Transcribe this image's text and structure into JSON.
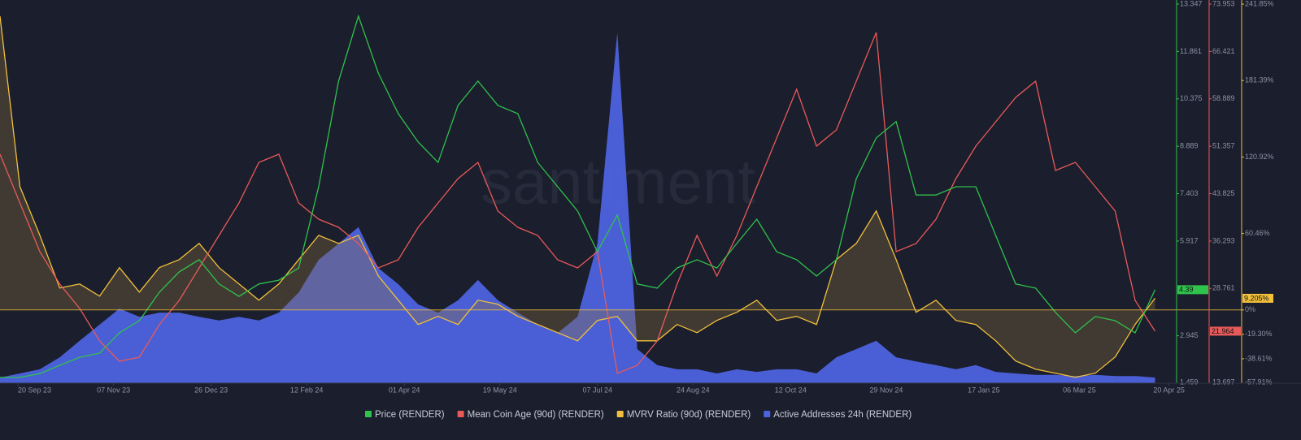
{
  "chart_data": {
    "type": "line",
    "watermark": "santiment",
    "x": [
      "2023-09-11",
      "2023-09-21",
      "2023-10-01",
      "2023-10-11",
      "2023-10-21",
      "2023-10-31",
      "2023-11-10",
      "2023-11-20",
      "2023-11-30",
      "2023-12-10",
      "2023-12-20",
      "2023-12-30",
      "2024-01-09",
      "2024-01-19",
      "2024-01-29",
      "2024-02-08",
      "2024-02-18",
      "2024-02-28",
      "2024-03-09",
      "2024-03-19",
      "2024-03-29",
      "2024-04-08",
      "2024-04-18",
      "2024-04-28",
      "2024-05-08",
      "2024-05-18",
      "2024-05-28",
      "2024-06-07",
      "2024-06-17",
      "2024-06-27",
      "2024-07-07",
      "2024-07-17",
      "2024-07-27",
      "2024-08-06",
      "2024-08-16",
      "2024-08-26",
      "2024-09-05",
      "2024-09-15",
      "2024-09-25",
      "2024-10-05",
      "2024-10-15",
      "2024-10-25",
      "2024-11-04",
      "2024-11-14",
      "2024-11-24",
      "2024-12-04",
      "2024-12-14",
      "2024-12-24",
      "2025-01-03",
      "2025-01-13",
      "2025-01-23",
      "2025-02-02",
      "2025-02-12",
      "2025-02-22",
      "2025-03-04",
      "2025-03-14",
      "2025-03-24",
      "2025-04-03",
      "2025-04-13"
    ],
    "xlim": [
      "2023-09-11",
      "2025-04-23"
    ],
    "xticks": [
      {
        "value": "2023-09-20",
        "label": "20 Sep 23"
      },
      {
        "value": "2023-11-07",
        "label": "07 Nov 23"
      },
      {
        "value": "2023-12-26",
        "label": "26 Dec 23"
      },
      {
        "value": "2024-02-12",
        "label": "12 Feb 24"
      },
      {
        "value": "2024-04-01",
        "label": "01 Apr 24"
      },
      {
        "value": "2024-05-19",
        "label": "19 May 24"
      },
      {
        "value": "2024-07-07",
        "label": "07 Jul 24"
      },
      {
        "value": "2024-08-24",
        "label": "24 Aug 24"
      },
      {
        "value": "2024-10-12",
        "label": "12 Oct 24"
      },
      {
        "value": "2024-11-29",
        "label": "29 Nov 24"
      },
      {
        "value": "2025-01-17",
        "label": "17 Jan 25"
      },
      {
        "value": "2025-03-06",
        "label": "06 Mar 25"
      },
      {
        "value": "2025-04-20",
        "label": "20 Apr 25"
      }
    ],
    "ylim": [
      1.459,
      13.347
    ],
    "yticks": [
      1.459,
      2.945,
      5.917,
      7.403,
      8.889,
      10.375,
      11.861,
      13.347
    ],
    "y2lim": [
      13.697,
      73.953
    ],
    "y2ticks": [
      13.697,
      28.761,
      36.293,
      43.825,
      51.357,
      58.889,
      66.421,
      73.953
    ],
    "y3lim": [
      -57.91,
      241.85
    ],
    "y3ticks": [
      {
        "value": -57.91,
        "label": "-57.91%"
      },
      {
        "value": -38.61,
        "label": "-38.61%"
      },
      {
        "value": -19.3,
        "label": "-19.30%"
      },
      {
        "value": 0,
        "label": "0%"
      },
      {
        "value": 60.46,
        "label": "60.46%"
      },
      {
        "value": 120.92,
        "label": "120.92%"
      },
      {
        "value": 181.39,
        "label": "181.39%"
      },
      {
        "value": 241.85,
        "label": "241.85%"
      }
    ],
    "y4lim": [
      0,
      100
    ],
    "series": [
      {
        "name": "Price (RENDER)",
        "color": "#2fc24d",
        "axis": "y",
        "style": "line",
        "current_label": "4.39",
        "values": [
          1.64,
          1.64,
          1.76,
          2.02,
          2.27,
          2.4,
          3.04,
          3.42,
          4.31,
          4.95,
          5.33,
          4.57,
          4.18,
          4.57,
          4.69,
          5.07,
          7.62,
          10.93,
          12.97,
          11.18,
          9.91,
          9.02,
          8.38,
          10.17,
          10.93,
          10.17,
          9.91,
          8.38,
          7.62,
          6.86,
          5.58,
          6.73,
          4.57,
          4.44,
          5.07,
          5.33,
          5.07,
          5.84,
          6.6,
          5.58,
          5.33,
          4.82,
          5.33,
          7.87,
          9.15,
          9.66,
          7.36,
          7.36,
          7.62,
          7.62,
          6.09,
          4.57,
          4.44,
          3.68,
          3.04,
          3.55,
          3.42,
          3.04,
          4.39
        ]
      },
      {
        "name": "Mean Coin Age (90d) (RENDER)",
        "color": "#e85a5a",
        "axis": "y2",
        "style": "line",
        "current_label": "21.964",
        "values": [
          50.08,
          42.34,
          34.6,
          29.44,
          25.57,
          20.41,
          17.18,
          17.83,
          22.99,
          26.86,
          32.02,
          37.18,
          42.34,
          48.79,
          50.08,
          42.34,
          39.76,
          38.47,
          35.89,
          32.02,
          33.31,
          38.47,
          42.34,
          46.21,
          48.79,
          41.05,
          38.47,
          37.18,
          33.31,
          32.02,
          34.6,
          15.24,
          16.54,
          20.41,
          29.44,
          37.18,
          30.73,
          37.18,
          44.92,
          52.66,
          60.4,
          51.37,
          53.95,
          61.7,
          69.44,
          34.6,
          35.89,
          39.76,
          46.21,
          51.37,
          55.24,
          59.11,
          61.7,
          47.5,
          48.79,
          44.92,
          41.05,
          26.86,
          21.964
        ]
      },
      {
        "name": "MVRV Ratio (90d) (RENDER)",
        "color": "#f2c03c",
        "axis": "y3",
        "style": "line",
        "current_label": "9.205%",
        "values": [
          232.2,
          97.5,
          59.0,
          17.3,
          20.5,
          10.9,
          33.4,
          14.1,
          33.4,
          39.8,
          52.6,
          33.4,
          20.5,
          7.7,
          20.5,
          39.8,
          59.0,
          52.6,
          59.0,
          26.9,
          7.7,
          -11.5,
          -5.1,
          -11.5,
          7.7,
          4.5,
          -5.1,
          -11.5,
          -18.0,
          -24.4,
          -8.3,
          -5.1,
          -24.4,
          -24.4,
          -11.5,
          -18.0,
          -8.3,
          -1.9,
          7.7,
          -8.3,
          -5.1,
          -11.5,
          39.8,
          52.6,
          78.3,
          39.8,
          -1.9,
          7.7,
          -8.3,
          -11.5,
          -24.4,
          -40.4,
          -46.8,
          -50.0,
          -53.2,
          -50.0,
          -37.2,
          -11.5,
          9.205
        ]
      },
      {
        "name": "Active Addresses 24h (RENDER)",
        "color": "#4d63de",
        "axis": "y4",
        "style": "area",
        "values": [
          1.5,
          2.6,
          3.7,
          6.9,
          11.3,
          15.6,
          19.9,
          17.7,
          18.8,
          18.8,
          17.7,
          16.7,
          17.7,
          16.7,
          18.8,
          24.2,
          32.9,
          37.2,
          41.6,
          30.7,
          26.4,
          21.0,
          18.8,
          22.1,
          27.5,
          22.1,
          18.8,
          15.6,
          13.4,
          17.7,
          37.2,
          93.5,
          9.1,
          4.8,
          3.7,
          3.7,
          2.6,
          3.7,
          3.0,
          3.7,
          3.7,
          2.6,
          6.9,
          9.1,
          11.3,
          6.9,
          5.8,
          4.8,
          3.7,
          4.8,
          3.0,
          2.6,
          2.2,
          2.2,
          1.9,
          2.2,
          1.9,
          1.9,
          1.5
        ]
      }
    ]
  }
}
